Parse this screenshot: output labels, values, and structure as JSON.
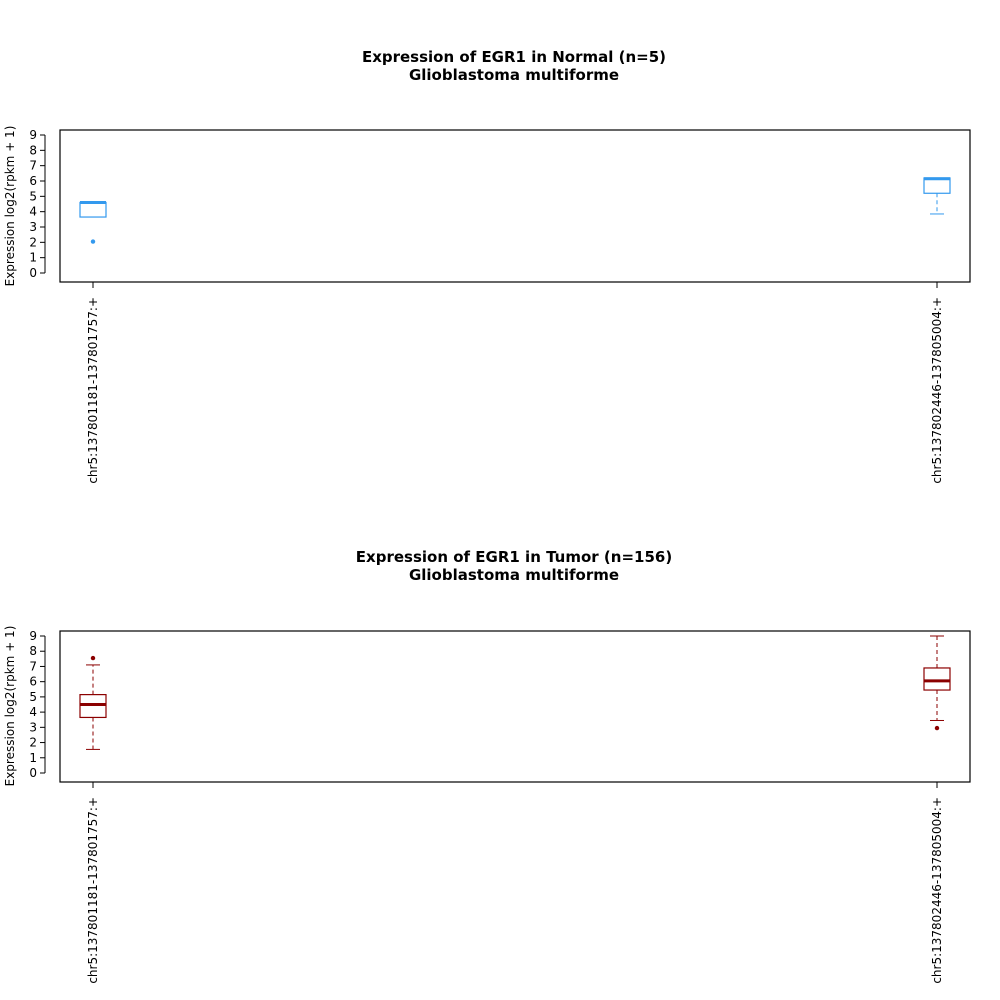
{
  "chart_data": [
    {
      "type": "box",
      "title": "Expression of EGR1 in Normal (n=5)",
      "subtitle": "Glioblastoma multiforme",
      "ylabel": "Expression log2(rpkm + 1)",
      "ylim": [
        0,
        9
      ],
      "yticks": [
        0,
        1,
        2,
        3,
        4,
        5,
        6,
        7,
        8,
        9
      ],
      "color": "#3399ee",
      "categories": [
        "chr5:137801181-137801757:+",
        "chr5:137802446-137805004:+"
      ],
      "boxes": [
        {
          "whisker_low": 3.65,
          "q1": 3.65,
          "median": 4.6,
          "q3": 4.6,
          "whisker_high": 4.6,
          "outliers": [
            2.05
          ]
        },
        {
          "whisker_low": 3.85,
          "q1": 5.2,
          "median": 6.15,
          "q3": 6.2,
          "whisker_high": 6.2,
          "outliers": []
        }
      ]
    },
    {
      "type": "box",
      "title": "Expression of EGR1 in Tumor (n=156)",
      "subtitle": "Glioblastoma multiforme",
      "ylabel": "Expression log2(rpkm + 1)",
      "ylim": [
        0,
        9
      ],
      "yticks": [
        0,
        1,
        2,
        3,
        4,
        5,
        6,
        7,
        8,
        9
      ],
      "color": "#8b0000",
      "categories": [
        "chr5:137801181-137801757:+",
        "chr5:137802446-137805004:+"
      ],
      "boxes": [
        {
          "whisker_low": 1.55,
          "q1": 3.65,
          "median": 4.5,
          "q3": 5.15,
          "whisker_high": 7.1,
          "outliers": [
            7.55
          ]
        },
        {
          "whisker_low": 3.45,
          "q1": 5.45,
          "median": 6.05,
          "q3": 6.9,
          "whisker_high": 9.0,
          "outliers": [
            2.95
          ]
        }
      ]
    }
  ]
}
